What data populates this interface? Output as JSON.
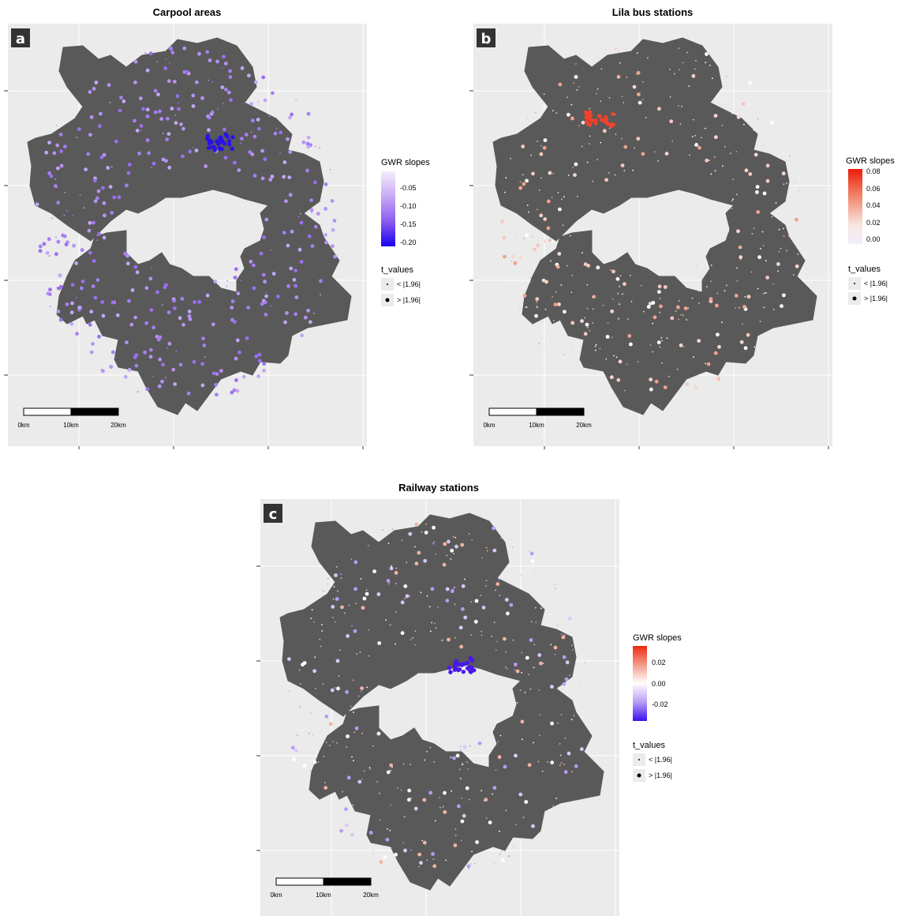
{
  "panels": [
    {
      "id": "a",
      "label": "a",
      "title": "Carpool areas",
      "legend": {
        "title": "GWR slopes",
        "ticks": [
          "-0.05",
          "-0.10",
          "-0.15",
          "-0.20"
        ],
        "gradient": [
          "#f4eefc",
          "#c7a9f4",
          "#8a5cf0",
          "#1a00ee"
        ]
      },
      "scalebar": [
        "0km",
        "10km",
        "20km"
      ],
      "point_colors": [
        "#b792f2",
        "#a77ff1",
        "#c4a6f4",
        "#9b6ff0"
      ],
      "hotspot_color": "#2a10e8"
    },
    {
      "id": "b",
      "label": "b",
      "title": "Lila bus stations",
      "legend": {
        "title": "GWR slopes",
        "ticks": [
          "0.08",
          "0.06",
          "0.04",
          "0.02",
          "0.00"
        ],
        "gradient": [
          "#ee1b08",
          "#f0664c",
          "#f4a996",
          "#f8e6e2",
          "#f2eefc"
        ]
      },
      "scalebar": [
        "0km",
        "10km",
        "20km"
      ],
      "point_colors": [
        "#f0a28f",
        "#f5c8bd",
        "#ffffff",
        "#f6d8cf"
      ],
      "hotspot_color": "#f0422c"
    },
    {
      "id": "c",
      "label": "c",
      "title": "Railway stations",
      "legend": {
        "title": "GWR slopes",
        "ticks": [
          "0.02",
          "0.00",
          "-0.02"
        ],
        "gradient": [
          "#ee2a12",
          "#f29a88",
          "#ffffff",
          "#b99cf4",
          "#3a10ee"
        ]
      },
      "scalebar": [
        "0km",
        "10km",
        "20km"
      ],
      "point_colors": [
        "#ffffff",
        "#d8c8f6",
        "#b99cf4",
        "#f2b3a4"
      ],
      "hotspot_color": "#4a18ec"
    }
  ],
  "t_values_legend": {
    "title": "t_values",
    "items": [
      "< |1.96|",
      "> |1.96|"
    ]
  }
}
